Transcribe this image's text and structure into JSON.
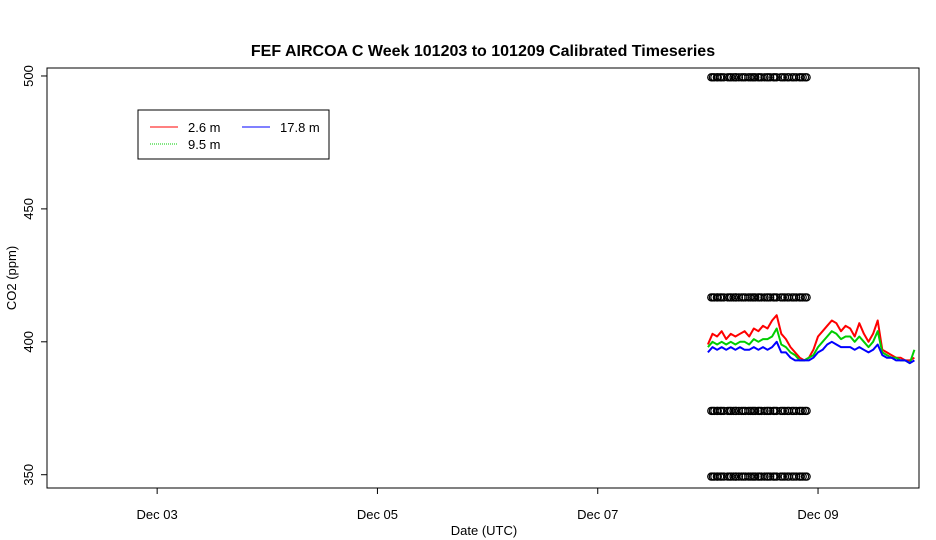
{
  "chart_data": {
    "type": "line",
    "title": "FEF AIRCOA C  Week 101203 to 101209  Calibrated Timeseries",
    "xlabel": "Date (UTC)",
    "ylabel": "CO2 (ppm)",
    "xlim": [
      "2010-12-02 00:00",
      "2010-12-09 22:00"
    ],
    "ylim": [
      345,
      503
    ],
    "x_ticks": [
      {
        "x": "2010-12-03 00:00",
        "label": "Dec 03"
      },
      {
        "x": "2010-12-05 00:00",
        "label": "Dec 05"
      },
      {
        "x": "2010-12-07 00:00",
        "label": "Dec 07"
      },
      {
        "x": "2010-12-09 00:00",
        "label": "Dec 09"
      }
    ],
    "y_ticks": [
      350,
      400,
      450,
      500
    ],
    "legend": {
      "placement": "top-left",
      "entries": [
        {
          "label": "2.6 m",
          "color": "#ff0000"
        },
        {
          "label": "9.5 m",
          "color": "#00cd00"
        },
        {
          "label": "17.8 m",
          "color": "#0000ff"
        }
      ]
    },
    "series": [
      {
        "name": "2.6 m",
        "color": "#ff0000",
        "x": [
          "2010-12-08 00:00",
          "2010-12-08 01:00",
          "2010-12-08 02:00",
          "2010-12-08 03:00",
          "2010-12-08 04:00",
          "2010-12-08 05:00",
          "2010-12-08 06:00",
          "2010-12-08 07:00",
          "2010-12-08 08:00",
          "2010-12-08 09:00",
          "2010-12-08 10:00",
          "2010-12-08 11:00",
          "2010-12-08 12:00",
          "2010-12-08 13:00",
          "2010-12-08 14:00",
          "2010-12-08 15:00",
          "2010-12-08 16:00",
          "2010-12-08 17:00",
          "2010-12-08 18:00",
          "2010-12-08 19:00",
          "2010-12-08 20:00",
          "2010-12-08 21:00",
          "2010-12-08 22:00",
          "2010-12-08 23:00",
          "2010-12-09 00:00",
          "2010-12-09 01:00",
          "2010-12-09 02:00",
          "2010-12-09 03:00",
          "2010-12-09 04:00",
          "2010-12-09 05:00",
          "2010-12-09 06:00",
          "2010-12-09 07:00",
          "2010-12-09 08:00",
          "2010-12-09 09:00",
          "2010-12-09 10:00",
          "2010-12-09 11:00",
          "2010-12-09 12:00",
          "2010-12-09 13:00",
          "2010-12-09 14:00",
          "2010-12-09 15:00",
          "2010-12-09 16:00",
          "2010-12-09 17:00",
          "2010-12-09 18:00",
          "2010-12-09 19:00",
          "2010-12-09 20:00",
          "2010-12-09 21:00"
        ],
        "values": [
          399,
          403,
          402,
          404,
          401,
          403,
          402,
          403,
          404,
          402,
          405,
          404,
          406,
          405,
          408,
          410,
          403,
          401,
          398,
          396,
          394,
          393,
          394,
          397,
          402,
          404,
          406,
          408,
          407,
          404,
          406,
          405,
          402,
          407,
          403,
          400,
          403,
          408,
          397,
          396,
          395,
          394,
          394,
          393,
          393,
          394
        ]
      },
      {
        "name": "9.5 m",
        "color": "#00cd00",
        "x": [
          "2010-12-08 00:00",
          "2010-12-08 01:00",
          "2010-12-08 02:00",
          "2010-12-08 03:00",
          "2010-12-08 04:00",
          "2010-12-08 05:00",
          "2010-12-08 06:00",
          "2010-12-08 07:00",
          "2010-12-08 08:00",
          "2010-12-08 09:00",
          "2010-12-08 10:00",
          "2010-12-08 11:00",
          "2010-12-08 12:00",
          "2010-12-08 13:00",
          "2010-12-08 14:00",
          "2010-12-08 15:00",
          "2010-12-08 16:00",
          "2010-12-08 17:00",
          "2010-12-08 18:00",
          "2010-12-08 19:00",
          "2010-12-08 20:00",
          "2010-12-08 21:00",
          "2010-12-08 22:00",
          "2010-12-08 23:00",
          "2010-12-09 00:00",
          "2010-12-09 01:00",
          "2010-12-09 02:00",
          "2010-12-09 03:00",
          "2010-12-09 04:00",
          "2010-12-09 05:00",
          "2010-12-09 06:00",
          "2010-12-09 07:00",
          "2010-12-09 08:00",
          "2010-12-09 09:00",
          "2010-12-09 10:00",
          "2010-12-09 11:00",
          "2010-12-09 12:00",
          "2010-12-09 13:00",
          "2010-12-09 14:00",
          "2010-12-09 15:00",
          "2010-12-09 16:00",
          "2010-12-09 17:00",
          "2010-12-09 18:00",
          "2010-12-09 19:00",
          "2010-12-09 20:00",
          "2010-12-09 21:00"
        ],
        "values": [
          398,
          400,
          399,
          400,
          399,
          400,
          399,
          400,
          400,
          399,
          401,
          400,
          401,
          401,
          402,
          405,
          399,
          398,
          396,
          395,
          393,
          393,
          394,
          395,
          398,
          400,
          402,
          404,
          403,
          401,
          402,
          402,
          400,
          402,
          400,
          398,
          400,
          404,
          396,
          395,
          394,
          394,
          393,
          393,
          392,
          397
        ]
      },
      {
        "name": "17.8 m",
        "color": "#0000ff",
        "x": [
          "2010-12-08 00:00",
          "2010-12-08 01:00",
          "2010-12-08 02:00",
          "2010-12-08 03:00",
          "2010-12-08 04:00",
          "2010-12-08 05:00",
          "2010-12-08 06:00",
          "2010-12-08 07:00",
          "2010-12-08 08:00",
          "2010-12-08 09:00",
          "2010-12-08 10:00",
          "2010-12-08 11:00",
          "2010-12-08 12:00",
          "2010-12-08 13:00",
          "2010-12-08 14:00",
          "2010-12-08 15:00",
          "2010-12-08 16:00",
          "2010-12-08 17:00",
          "2010-12-08 18:00",
          "2010-12-08 19:00",
          "2010-12-08 20:00",
          "2010-12-08 21:00",
          "2010-12-08 22:00",
          "2010-12-08 23:00",
          "2010-12-09 00:00",
          "2010-12-09 01:00",
          "2010-12-09 02:00",
          "2010-12-09 03:00",
          "2010-12-09 04:00",
          "2010-12-09 05:00",
          "2010-12-09 06:00",
          "2010-12-09 07:00",
          "2010-12-09 08:00",
          "2010-12-09 09:00",
          "2010-12-09 10:00",
          "2010-12-09 11:00",
          "2010-12-09 12:00",
          "2010-12-09 13:00",
          "2010-12-09 14:00",
          "2010-12-09 15:00",
          "2010-12-09 16:00",
          "2010-12-09 17:00",
          "2010-12-09 18:00",
          "2010-12-09 19:00",
          "2010-12-09 20:00",
          "2010-12-09 21:00"
        ],
        "values": [
          396,
          398,
          397,
          398,
          397,
          398,
          397,
          398,
          397,
          397,
          398,
          397,
          398,
          397,
          398,
          400,
          396,
          396,
          394,
          393,
          393,
          393,
          393,
          394,
          396,
          397,
          399,
          400,
          399,
          398,
          398,
          398,
          397,
          398,
          397,
          396,
          397,
          399,
          395,
          394,
          394,
          393,
          393,
          393,
          392,
          393
        ]
      },
      {
        "name": "",
        "type": "scatter",
        "marker": "open-circle",
        "color": "#000000",
        "levels": [
          {
            "y": 499.5,
            "x": [
              "2010-12-08 00:45",
              "2010-12-08 01:05",
              "2010-12-08 01:25",
              "2010-12-08 01:58",
              "2010-12-08 02:10",
              "2010-12-08 02:40",
              "2010-12-08 03:00",
              "2010-12-08 03:30",
              "2010-12-08 04:20",
              "2010-12-08 04:45",
              "2010-12-08 05:05",
              "2010-12-08 05:35",
              "2010-12-08 06:00",
              "2010-12-08 06:10",
              "2010-12-08 06:45",
              "2010-12-08 07:20",
              "2010-12-08 07:45",
              "2010-12-08 08:10",
              "2010-12-08 08:50",
              "2010-12-08 09:15",
              "2010-12-08 09:40",
              "2010-12-08 10:00",
              "2010-12-08 10:20",
              "2010-12-08 10:55",
              "2010-12-08 11:15",
              "2010-12-08 11:40",
              "2010-12-08 12:20",
              "2010-12-08 12:50",
              "2010-12-08 13:10",
              "2010-12-08 13:35",
              "2010-12-08 14:15",
              "2010-12-08 14:35",
              "2010-12-08 15:00",
              "2010-12-08 15:55",
              "2010-12-08 16:20",
              "2010-12-08 16:45",
              "2010-12-08 17:20",
              "2010-12-08 17:40",
              "2010-12-08 18:20",
              "2010-12-08 18:45",
              "2010-12-08 19:15",
              "2010-12-08 19:55",
              "2010-12-08 20:15",
              "2010-12-08 20:40",
              "2010-12-08 21:10",
              "2010-12-08 21:30"
            ]
          },
          {
            "y": 416.7,
            "x": [
              "2010-12-08 00:45",
              "2010-12-08 01:05",
              "2010-12-08 01:25",
              "2010-12-08 01:58",
              "2010-12-08 02:10",
              "2010-12-08 02:40",
              "2010-12-08 03:00",
              "2010-12-08 03:30",
              "2010-12-08 04:20",
              "2010-12-08 04:45",
              "2010-12-08 05:05",
              "2010-12-08 05:35",
              "2010-12-08 06:00",
              "2010-12-08 06:10",
              "2010-12-08 06:45",
              "2010-12-08 07:20",
              "2010-12-08 07:45",
              "2010-12-08 08:10",
              "2010-12-08 08:50",
              "2010-12-08 09:15",
              "2010-12-08 09:40",
              "2010-12-08 10:00",
              "2010-12-08 10:20",
              "2010-12-08 10:55",
              "2010-12-08 11:15",
              "2010-12-08 11:40",
              "2010-12-08 12:20",
              "2010-12-08 12:50",
              "2010-12-08 13:10",
              "2010-12-08 13:35",
              "2010-12-08 14:15",
              "2010-12-08 14:35",
              "2010-12-08 15:00",
              "2010-12-08 15:55",
              "2010-12-08 16:20",
              "2010-12-08 16:45",
              "2010-12-08 17:20",
              "2010-12-08 17:40",
              "2010-12-08 18:20",
              "2010-12-08 18:45",
              "2010-12-08 19:15",
              "2010-12-08 19:55",
              "2010-12-08 20:15",
              "2010-12-08 20:40",
              "2010-12-08 21:10",
              "2010-12-08 21:30"
            ]
          },
          {
            "y": 374,
            "x": [
              "2010-12-08 00:45",
              "2010-12-08 01:05",
              "2010-12-08 01:25",
              "2010-12-08 01:58",
              "2010-12-08 02:10",
              "2010-12-08 02:40",
              "2010-12-08 03:00",
              "2010-12-08 03:30",
              "2010-12-08 04:20",
              "2010-12-08 04:45",
              "2010-12-08 05:05",
              "2010-12-08 05:35",
              "2010-12-08 06:00",
              "2010-12-08 06:10",
              "2010-12-08 06:45",
              "2010-12-08 07:20",
              "2010-12-08 07:45",
              "2010-12-08 08:10",
              "2010-12-08 08:50",
              "2010-12-08 09:15",
              "2010-12-08 09:40",
              "2010-12-08 10:00",
              "2010-12-08 10:20",
              "2010-12-08 10:55",
              "2010-12-08 11:15",
              "2010-12-08 11:40",
              "2010-12-08 12:20",
              "2010-12-08 12:50",
              "2010-12-08 13:10",
              "2010-12-08 13:35",
              "2010-12-08 14:15",
              "2010-12-08 14:35",
              "2010-12-08 15:00",
              "2010-12-08 15:55",
              "2010-12-08 16:20",
              "2010-12-08 16:45",
              "2010-12-08 17:20",
              "2010-12-08 17:40",
              "2010-12-08 18:20",
              "2010-12-08 18:45",
              "2010-12-08 19:15",
              "2010-12-08 19:55",
              "2010-12-08 20:15",
              "2010-12-08 20:40",
              "2010-12-08 21:10",
              "2010-12-08 21:30"
            ]
          },
          {
            "y": 349.3,
            "x": [
              "2010-12-08 00:45",
              "2010-12-08 01:05",
              "2010-12-08 01:25",
              "2010-12-08 01:58",
              "2010-12-08 02:10",
              "2010-12-08 02:40",
              "2010-12-08 03:00",
              "2010-12-08 03:30",
              "2010-12-08 04:20",
              "2010-12-08 04:45",
              "2010-12-08 05:05",
              "2010-12-08 05:35",
              "2010-12-08 06:00",
              "2010-12-08 06:10",
              "2010-12-08 06:45",
              "2010-12-08 07:20",
              "2010-12-08 07:45",
              "2010-12-08 08:10",
              "2010-12-08 08:50",
              "2010-12-08 09:15",
              "2010-12-08 09:40",
              "2010-12-08 10:00",
              "2010-12-08 10:20",
              "2010-12-08 10:55",
              "2010-12-08 11:15",
              "2010-12-08 11:40",
              "2010-12-08 12:20",
              "2010-12-08 12:50",
              "2010-12-08 13:10",
              "2010-12-08 13:35",
              "2010-12-08 14:15",
              "2010-12-08 14:35",
              "2010-12-08 15:00",
              "2010-12-08 15:55",
              "2010-12-08 16:20",
              "2010-12-08 16:45",
              "2010-12-08 17:20",
              "2010-12-08 17:40",
              "2010-12-08 18:20",
              "2010-12-08 18:45",
              "2010-12-08 19:15",
              "2010-12-08 19:55",
              "2010-12-08 20:15",
              "2010-12-08 20:40",
              "2010-12-08 21:10",
              "2010-12-08 21:30"
            ]
          }
        ]
      }
    ]
  }
}
